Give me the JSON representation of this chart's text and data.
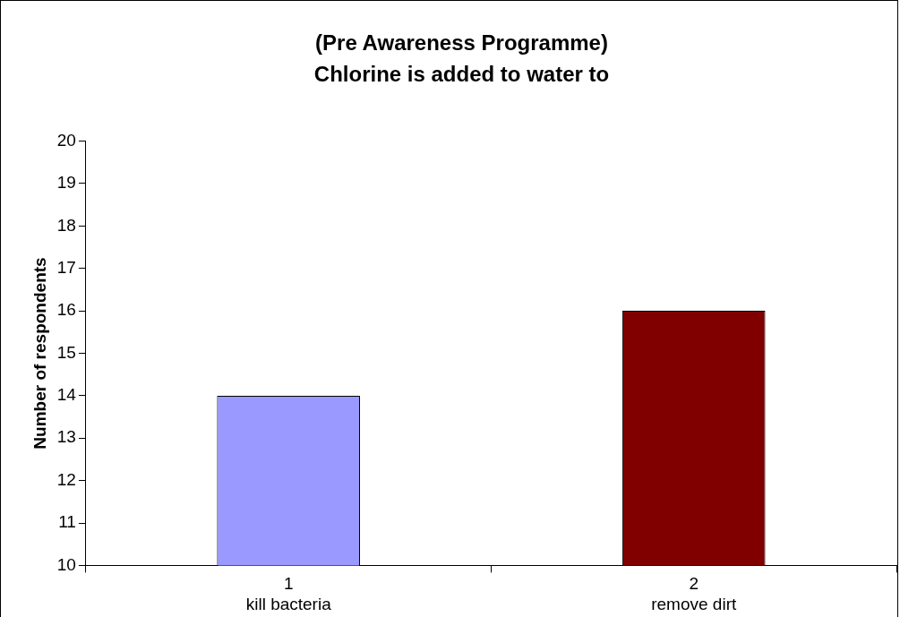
{
  "chart_data": {
    "type": "bar",
    "title": "(Pre Awareness Programme)\nChlorine is added to water to",
    "ylabel": "Number of respondents",
    "categories": [
      "1\nkill bacteria",
      "2\nremove dirt"
    ],
    "values": [
      14,
      16
    ],
    "colors": [
      "#9999ff",
      "#800000"
    ],
    "ylim": [
      10,
      20
    ],
    "yticks": [
      10,
      11,
      12,
      13,
      14,
      15,
      16,
      17,
      18,
      19,
      20
    ],
    "grid": false,
    "legend": false
  }
}
